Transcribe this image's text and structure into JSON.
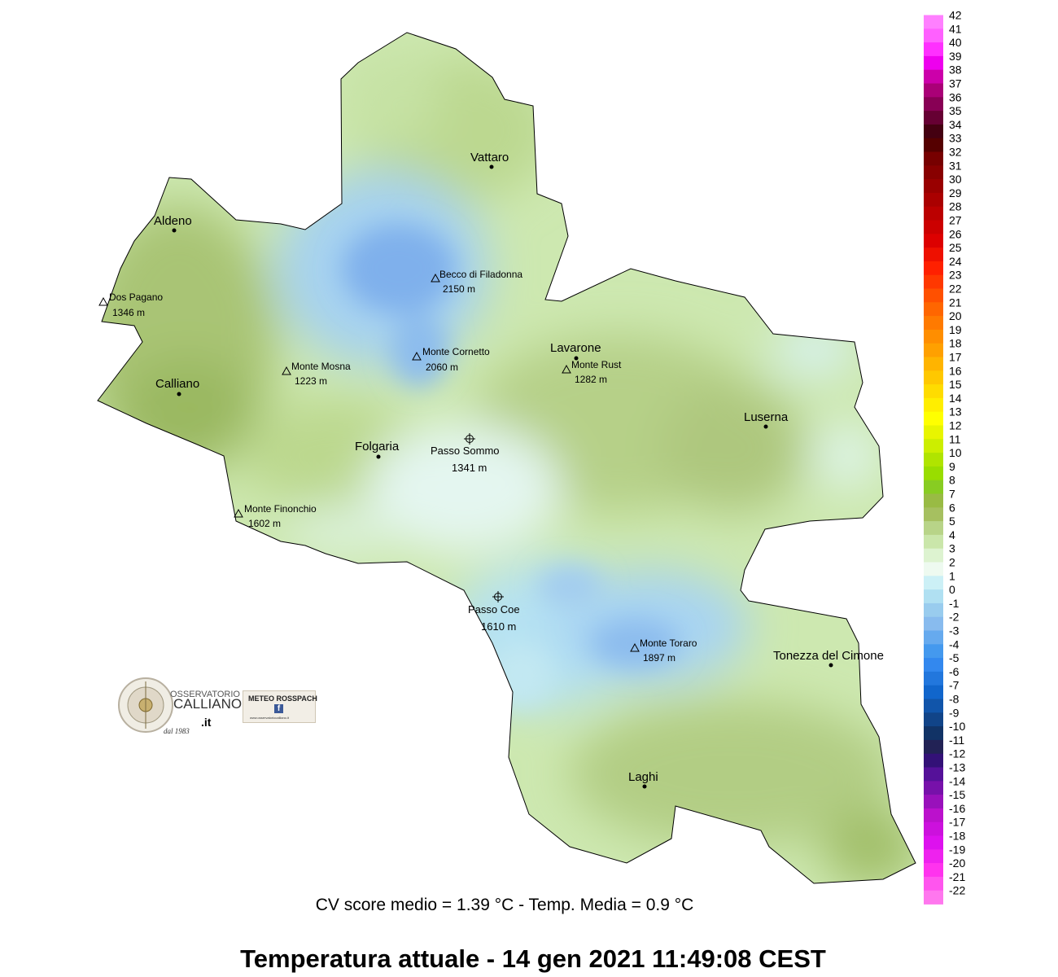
{
  "title": "Temperatura attuale  -  14 gen 2021 11:49:08  CEST",
  "subtitle": "CV score medio = 1.39 °C  -  Temp. Media = 0.9 °C",
  "towns": [
    {
      "name": "Vattaro"
    },
    {
      "name": "Aldeno"
    },
    {
      "name": "Calliano"
    },
    {
      "name": "Folgaria"
    },
    {
      "name": "Lavarone"
    },
    {
      "name": "Luserna"
    },
    {
      "name": "Tonezza del Cimone"
    },
    {
      "name": "Laghi"
    }
  ],
  "peaks": [
    {
      "name": "Becco di Filadonna",
      "elev": "2150 m"
    },
    {
      "name": "Dos Pagano",
      "elev": "1346 m"
    },
    {
      "name": "Monte Cornetto",
      "elev": "2060 m"
    },
    {
      "name": "Monte Mosna",
      "elev": "1223 m"
    },
    {
      "name": "Monte Rust",
      "elev": "1282 m"
    },
    {
      "name": "Monte Finonchio",
      "elev": "1602 m"
    },
    {
      "name": "Monte Toraro",
      "elev": "1897 m"
    }
  ],
  "passes": [
    {
      "name": "Passo Sommo",
      "elev": "1341 m"
    },
    {
      "name": "Passo Coe",
      "elev": "1610 m"
    }
  ],
  "scale": {
    "max": 42,
    "min": -22,
    "colors": [
      "#ff80ff",
      "#ff60ff",
      "#ff30ff",
      "#ee00ee",
      "#cc00aa",
      "#aa0077",
      "#880055",
      "#660033",
      "#440011",
      "#550000",
      "#770000",
      "#880000",
      "#990000",
      "#aa0000",
      "#bb0000",
      "#cc0000",
      "#dd0000",
      "#ee1000",
      "#ff2000",
      "#ff3800",
      "#ff5000",
      "#ff6600",
      "#ff7a00",
      "#ff8e00",
      "#ffa000",
      "#ffb400",
      "#ffc800",
      "#ffdc00",
      "#ffee00",
      "#ffff00",
      "#e8f500",
      "#ccee00",
      "#b0e400",
      "#99dd00",
      "#88cc22",
      "#99bb44",
      "#a6c060",
      "#b8d488",
      "#cae6aa",
      "#ddf3d0",
      "#eefaf0",
      "#ccf0f6",
      "#b0e0f2",
      "#99ccee",
      "#88bbee",
      "#66aaee",
      "#4499ee",
      "#3388ee",
      "#2277dd",
      "#1166cc",
      "#1155aa",
      "#114488",
      "#113366",
      "#222255",
      "#331177",
      "#551199",
      "#7711aa",
      "#9911bb",
      "#bb11cc",
      "#cc11dd",
      "#dd11ee",
      "#ee22ee",
      "#ff33ee",
      "#ff55ee",
      "#ff77ee"
    ]
  },
  "logos": {
    "observatory": {
      "line1": "OSSERVATORIO",
      "line2": "CALLIANO",
      ".it": ".it",
      "tag": "dal 1983"
    },
    "meteo": {
      "line1": "METEO ROSSPACH",
      "icon": "facebook-icon",
      "tag": "www.osservatoriocalliano.it"
    }
  }
}
